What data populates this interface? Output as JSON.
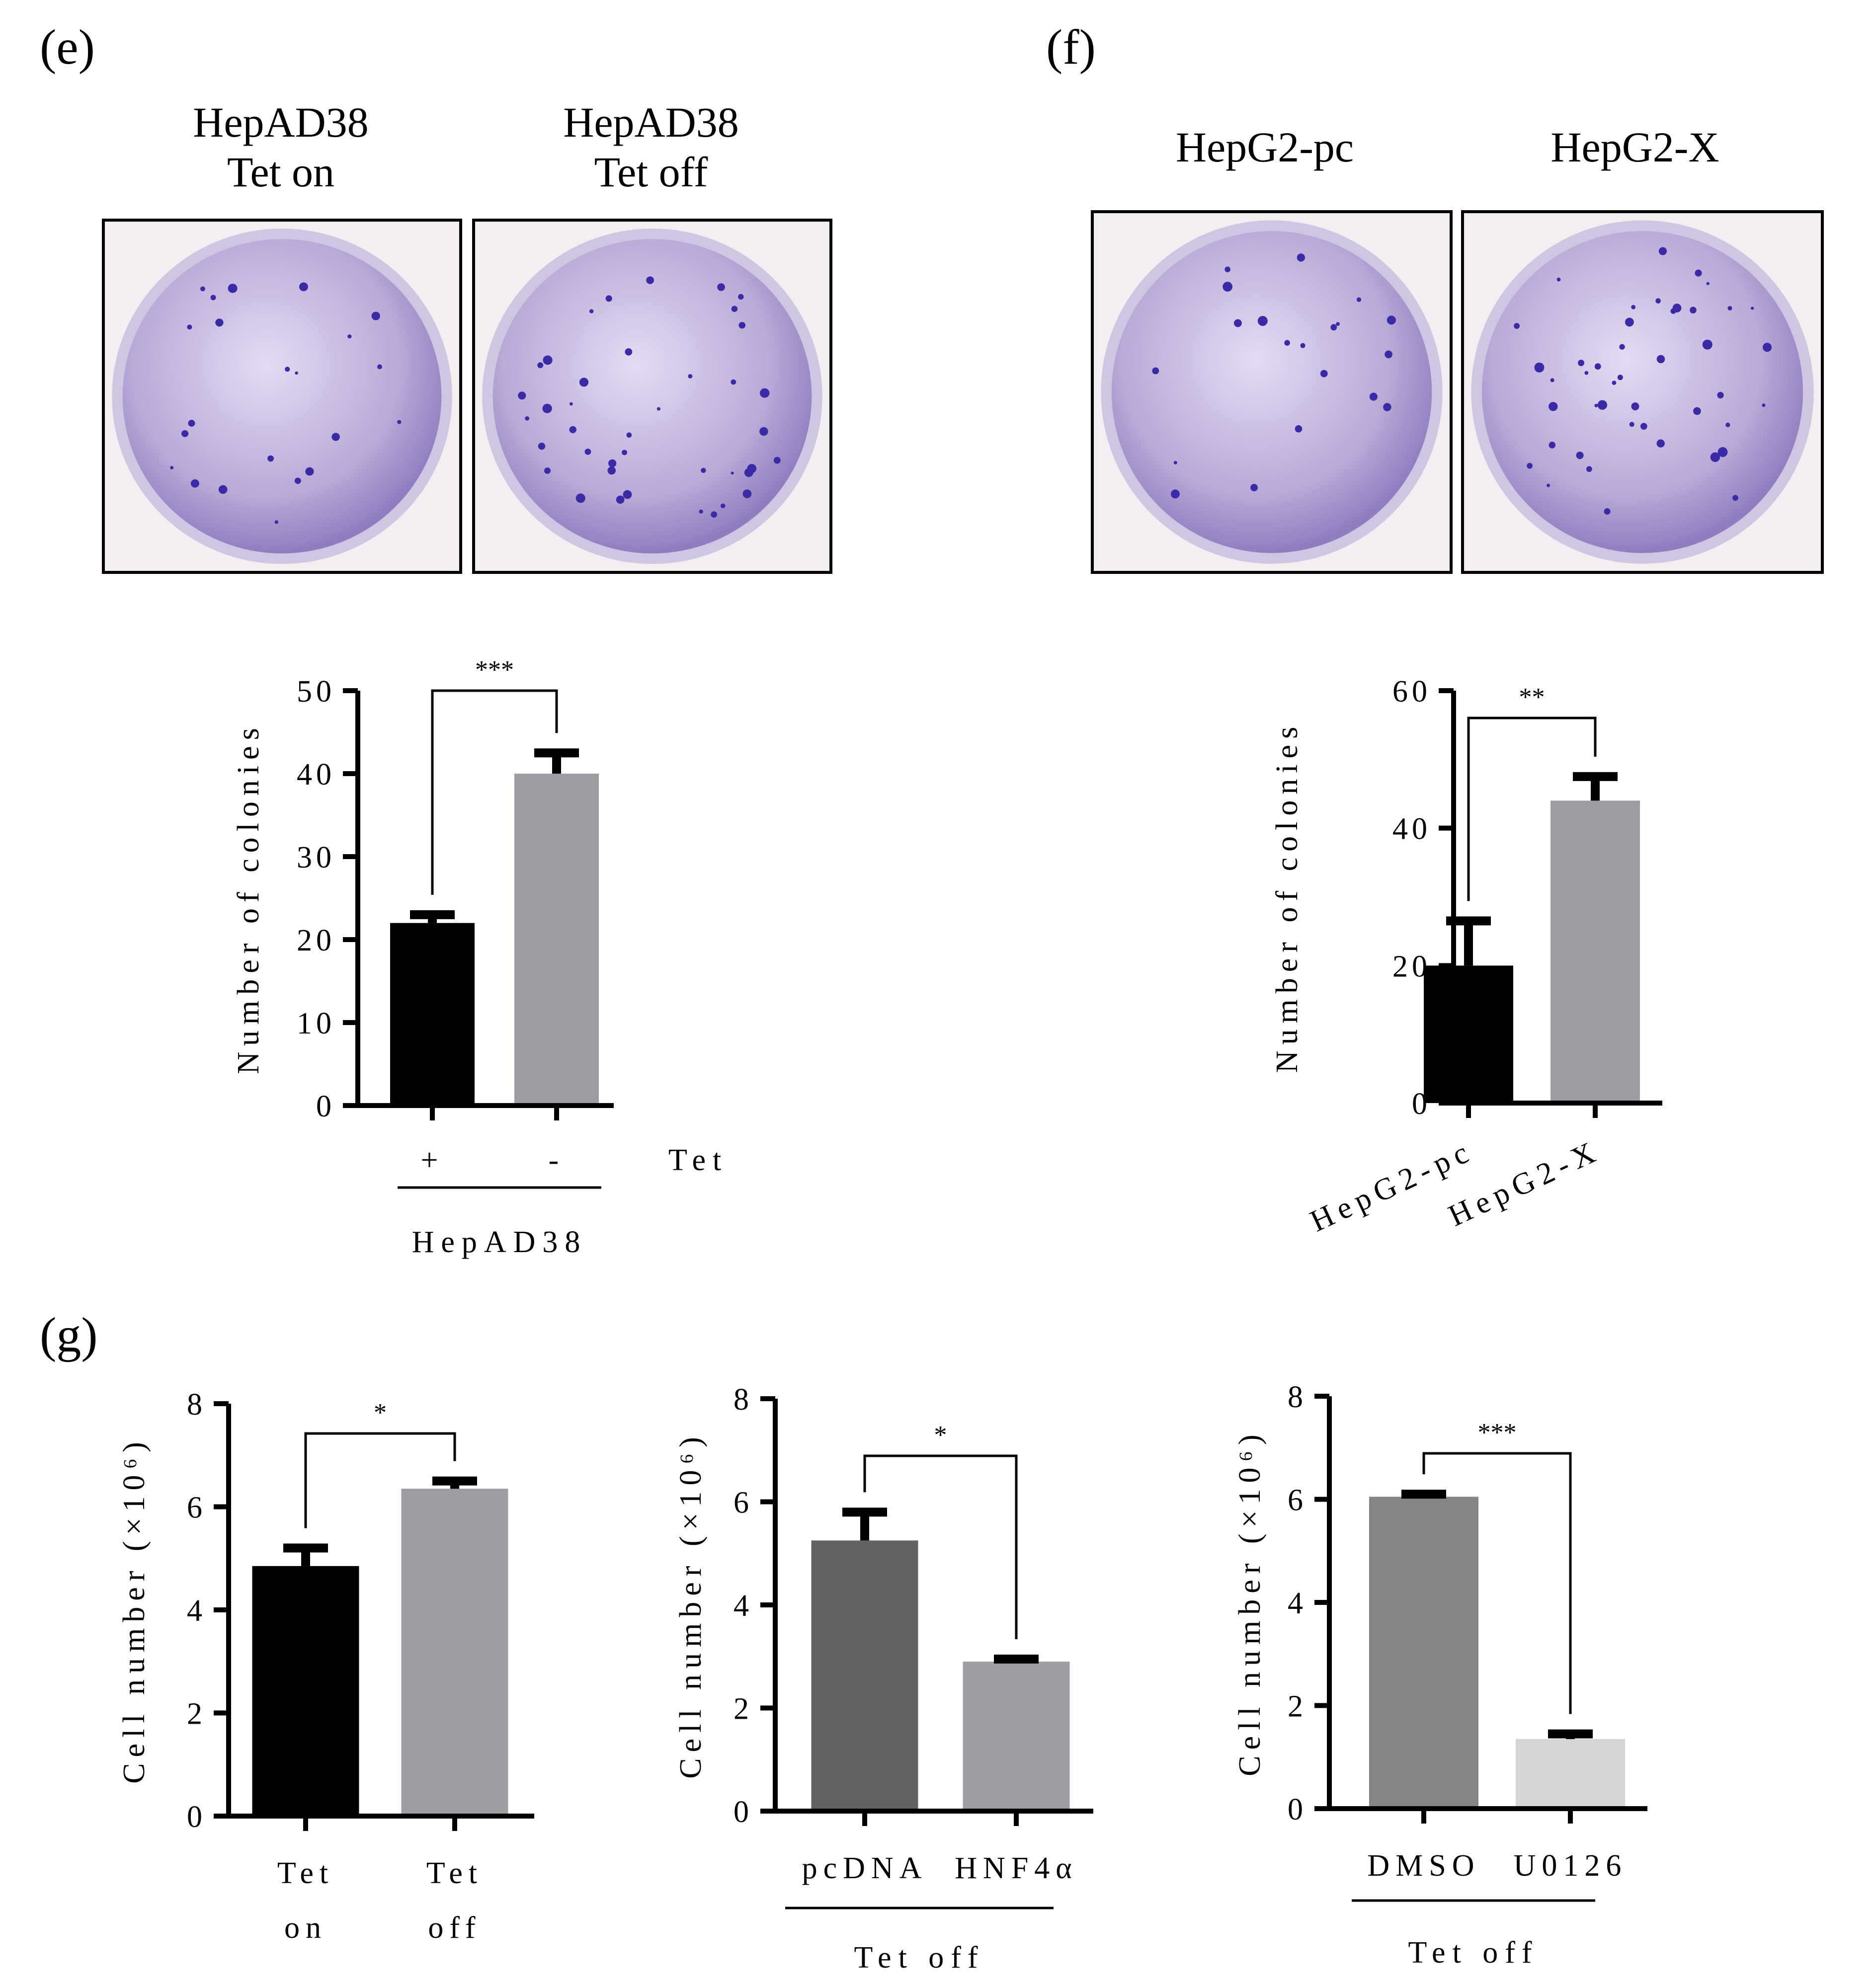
{
  "panels": {
    "e": {
      "label": "(e)",
      "photos": [
        {
          "line1": "HepAD38",
          "line2": "Tet on",
          "colonies": 22
        },
        {
          "line1": "HepAD38",
          "line2": "Tet off",
          "colonies": 40
        }
      ]
    },
    "f": {
      "label": "(f)",
      "photos": [
        {
          "line1": "HepG2-pc",
          "colonies": 20
        },
        {
          "line1": "HepG2-X",
          "colonies": 44
        }
      ]
    },
    "g": {
      "label": "(g)"
    }
  },
  "colors": {
    "black": "#000000",
    "gray": "#9e9da3",
    "dark_gray": "#636363",
    "mid_gray": "#858585",
    "light_gray": "#d5d5d5",
    "dish": "#b9a9d6",
    "colony": "#3a2aa8"
  },
  "chart_data": [
    {
      "id": "e",
      "type": "bar",
      "categories": [
        "+",
        "-"
      ],
      "values": [
        22,
        40
      ],
      "errors": [
        1,
        2.5
      ],
      "bar_colors": [
        "#000000",
        "#9e9da3"
      ],
      "ylabel": "Number of colonies",
      "ylim": [
        0,
        50
      ],
      "yticks": [
        "0",
        "10",
        "20",
        "30",
        "40",
        "50"
      ],
      "row_label": "Tet",
      "group_label": "HepAD38",
      "significance": "***",
      "grid": false
    },
    {
      "id": "f",
      "type": "bar",
      "categories": [
        "HepG2-pc",
        "HepG2-X"
      ],
      "values": [
        20,
        44
      ],
      "errors": [
        6.5,
        3.5
      ],
      "bar_colors": [
        "#000000",
        "#9e9da3"
      ],
      "ylabel": "Number of colonies",
      "ylim": [
        0,
        60
      ],
      "yticks": [
        "0",
        "20",
        "40",
        "60"
      ],
      "significance": "**",
      "grid": false
    },
    {
      "id": "g1",
      "type": "bar",
      "categories": [
        "Tet\non",
        "Tet\noff"
      ],
      "values": [
        4.85,
        6.35
      ],
      "errors": [
        0.35,
        0.15
      ],
      "bar_colors": [
        "#000000",
        "#9e9da3"
      ],
      "ylabel": "Cell number (×10⁶)",
      "ylim": [
        0,
        8
      ],
      "yticks": [
        "0",
        "2",
        "4",
        "6",
        "8"
      ],
      "significance": "*",
      "grid": false
    },
    {
      "id": "g2",
      "type": "bar",
      "categories": [
        "pcDNA",
        "HNF4α"
      ],
      "values": [
        5.25,
        2.9
      ],
      "errors": [
        0.55,
        0.05
      ],
      "bar_colors": [
        "#636363",
        "#9e9da3"
      ],
      "ylabel": "Cell number (×10⁶)",
      "ylim": [
        0,
        8
      ],
      "yticks": [
        "0",
        "2",
        "4",
        "6",
        "8"
      ],
      "group_label": "Tet off",
      "significance": "*",
      "grid": false
    },
    {
      "id": "g3",
      "type": "bar",
      "categories": [
        "DMSO",
        "U0126"
      ],
      "values": [
        6.05,
        1.35
      ],
      "errors": [
        0.05,
        0.1
      ],
      "bar_colors": [
        "#858585",
        "#d5d5d5"
      ],
      "ylabel": "Cell number (×10⁶)",
      "ylim": [
        0,
        8
      ],
      "yticks": [
        "0",
        "2",
        "4",
        "6",
        "8"
      ],
      "group_label": "Tet off",
      "significance": "***",
      "grid": false
    }
  ]
}
